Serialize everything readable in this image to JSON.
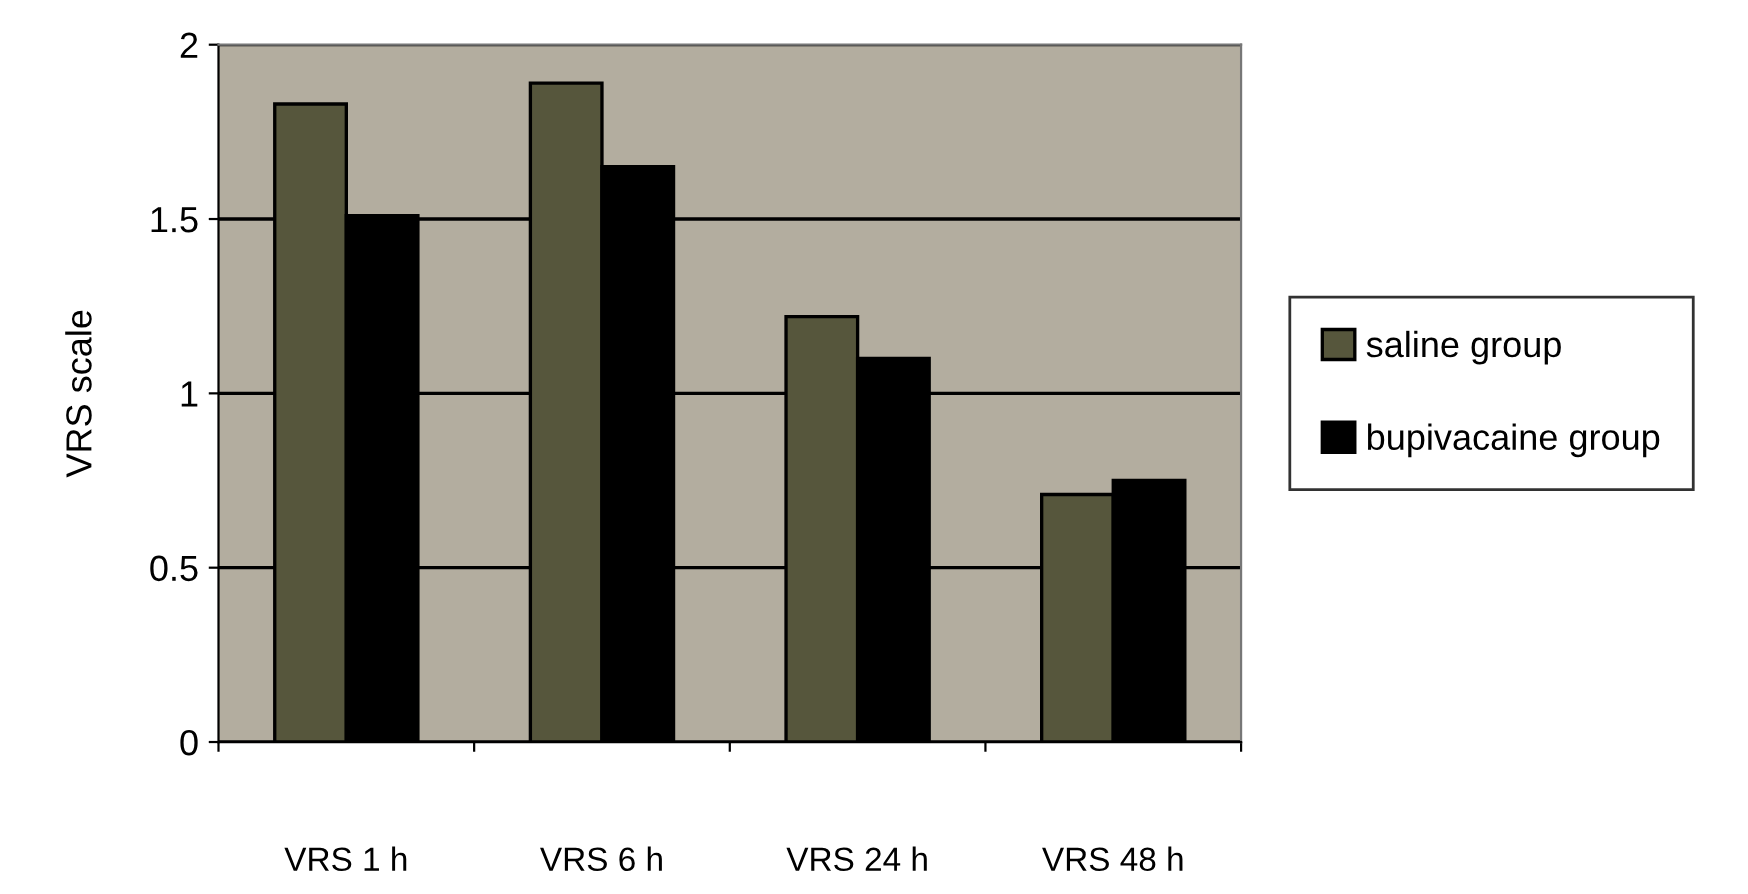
{
  "chart_data": {
    "type": "bar",
    "ylabel": "VRS scale",
    "categories": [
      "VRS 1 h",
      "VRS 6 h",
      "VRS 24 h",
      "VRS 48 h"
    ],
    "series": [
      {
        "name": "saline group",
        "color": "#56563c",
        "values": [
          1.83,
          1.89,
          1.22,
          0.71
        ]
      },
      {
        "name": "bupivacaine group",
        "color": "#000000",
        "values": [
          1.51,
          1.65,
          1.1,
          0.75
        ]
      }
    ],
    "ylim": [
      0,
      2
    ],
    "yticks": [
      0,
      0.5,
      1,
      1.5,
      2
    ],
    "grid": "y",
    "legend": "right"
  }
}
